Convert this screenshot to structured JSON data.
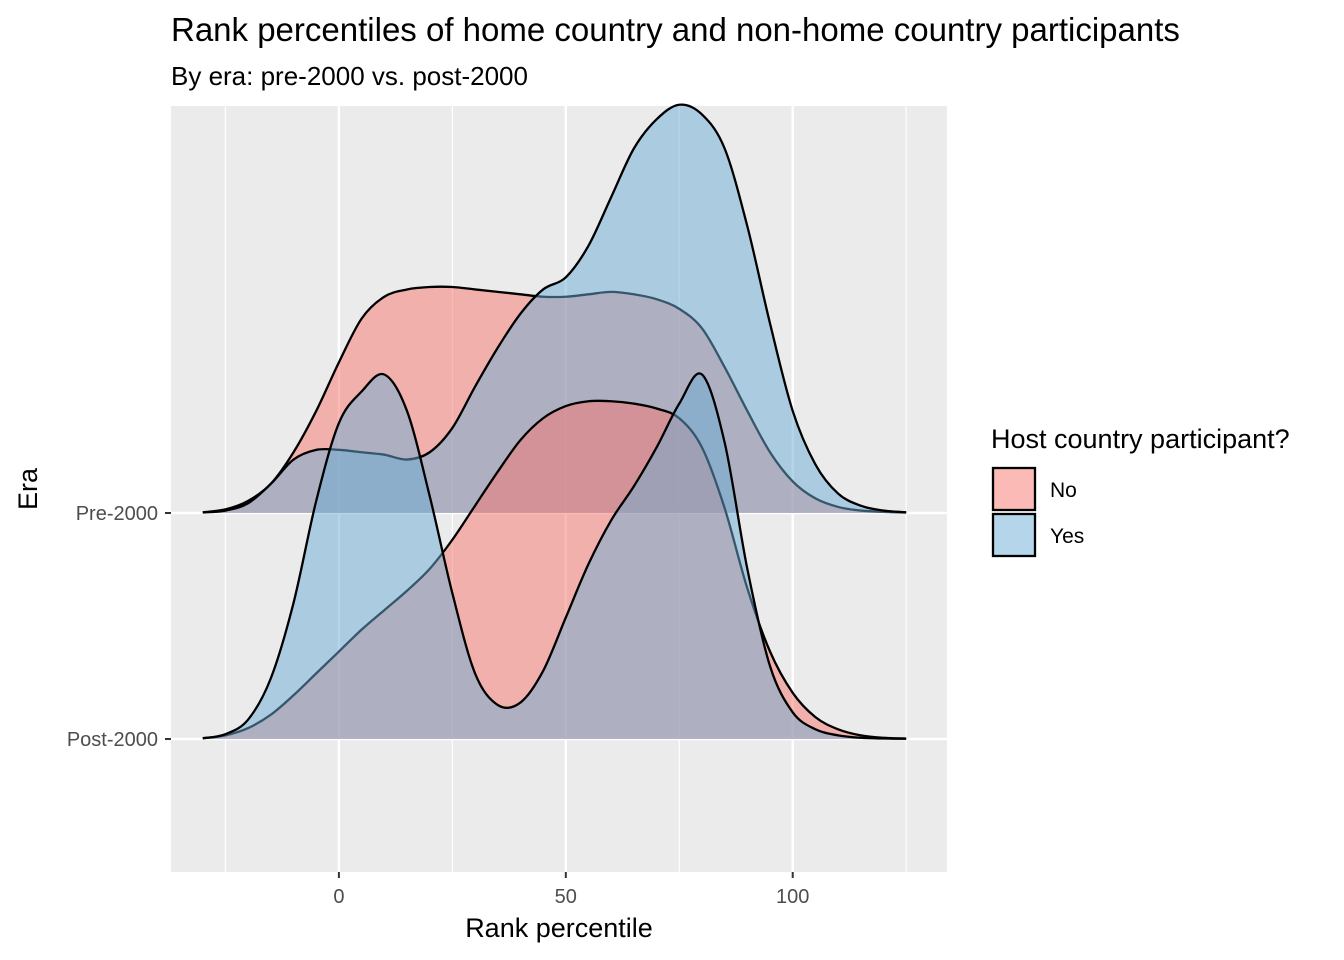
{
  "title": "Rank percentiles of home country and non-home country participants",
  "subtitle": "By era: pre-2000 vs. post-2000",
  "legend": {
    "title": "Host country participant?",
    "items": [
      {
        "label": "No",
        "color": "#F8766D"
      },
      {
        "label": "Yes",
        "color": "#6BAED6"
      }
    ]
  },
  "colors": {
    "panel_background": "#EBEBEB",
    "gridline": "#FFFFFF",
    "density_outline": "#000000"
  },
  "chart_data": {
    "type": "ridgeline",
    "xlabel": "Rank percentile",
    "ylabel": "Era",
    "xlim": [
      -37,
      134
    ],
    "x_ticks": [
      0,
      50,
      100
    ],
    "y_categories": [
      "Pre-2000",
      "Post-2000"
    ],
    "fill_opacity": 0.5,
    "grid": true,
    "legend_position": "right",
    "ridges": [
      {
        "category": "Pre-2000",
        "series": [
          {
            "name": "No",
            "x": [
              -30,
              -25,
              -20,
              -15,
              -10,
              -5,
              0,
              5,
              10,
              15,
              20,
              25,
              30,
              35,
              40,
              45,
              50,
              55,
              60,
              65,
              70,
              75,
              80,
              85,
              90,
              95,
              100,
              105,
              110,
              115,
              120,
              125
            ],
            "density": [
              0.003,
              0.015,
              0.05,
              0.12,
              0.25,
              0.42,
              0.62,
              0.8,
              0.89,
              0.92,
              0.93,
              0.93,
              0.92,
              0.91,
              0.9,
              0.89,
              0.89,
              0.9,
              0.91,
              0.9,
              0.88,
              0.84,
              0.76,
              0.6,
              0.42,
              0.25,
              0.13,
              0.06,
              0.025,
              0.01,
              0.005,
              0.002
            ]
          },
          {
            "name": "Yes",
            "x": [
              -30,
              -25,
              -20,
              -15,
              -10,
              -5,
              0,
              5,
              10,
              15,
              20,
              25,
              30,
              35,
              40,
              45,
              50,
              55,
              60,
              65,
              70,
              75,
              80,
              85,
              90,
              95,
              100,
              105,
              110,
              115,
              120,
              125
            ],
            "density": [
              0.002,
              0.01,
              0.04,
              0.12,
              0.22,
              0.26,
              0.26,
              0.25,
              0.24,
              0.22,
              0.25,
              0.35,
              0.52,
              0.68,
              0.82,
              0.92,
              0.97,
              1.1,
              1.3,
              1.5,
              1.62,
              1.68,
              1.64,
              1.5,
              1.18,
              0.78,
              0.42,
              0.2,
              0.08,
              0.03,
              0.01,
              0.003
            ]
          }
        ]
      },
      {
        "category": "Post-2000",
        "series": [
          {
            "name": "No",
            "x": [
              -30,
              -25,
              -20,
              -15,
              -10,
              -5,
              0,
              5,
              10,
              15,
              20,
              25,
              30,
              35,
              40,
              45,
              50,
              55,
              60,
              65,
              70,
              75,
              80,
              85,
              90,
              95,
              100,
              105,
              110,
              115,
              120,
              125
            ],
            "density": [
              0.003,
              0.015,
              0.045,
              0.1,
              0.18,
              0.27,
              0.36,
              0.45,
              0.53,
              0.61,
              0.7,
              0.82,
              0.96,
              1.1,
              1.23,
              1.32,
              1.37,
              1.39,
              1.39,
              1.38,
              1.36,
              1.32,
              1.2,
              0.95,
              0.62,
              0.36,
              0.19,
              0.09,
              0.04,
              0.015,
              0.005,
              0.002
            ]
          },
          {
            "name": "Yes",
            "x": [
              -30,
              -25,
              -20,
              -15,
              -10,
              -5,
              0,
              5,
              10,
              15,
              20,
              25,
              30,
              35,
              40,
              45,
              50,
              55,
              60,
              65,
              70,
              75,
              80,
              85,
              90,
              95,
              100,
              105,
              110,
              115,
              120,
              125
            ],
            "density": [
              0.003,
              0.02,
              0.08,
              0.25,
              0.56,
              0.98,
              1.3,
              1.43,
              1.5,
              1.35,
              1.0,
              0.6,
              0.27,
              0.14,
              0.15,
              0.28,
              0.5,
              0.72,
              0.9,
              1.04,
              1.2,
              1.38,
              1.5,
              1.22,
              0.7,
              0.3,
              0.11,
              0.04,
              0.015,
              0.005,
              0.002,
              0.001
            ]
          }
        ]
      }
    ]
  }
}
